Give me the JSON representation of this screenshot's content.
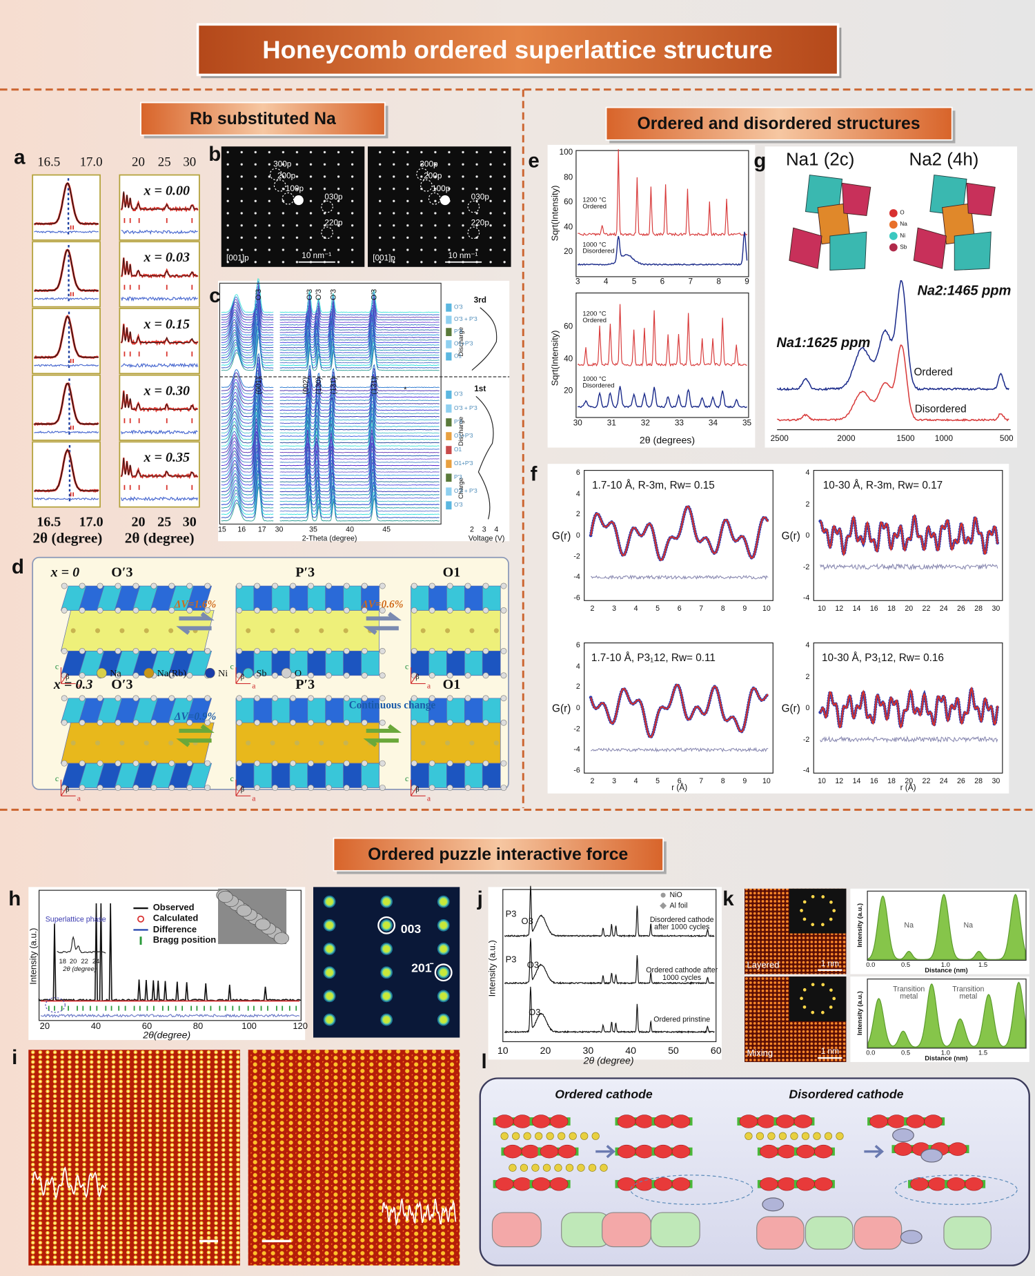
{
  "header": {
    "title": "Honeycomb ordered superlattice structure"
  },
  "sections": [
    {
      "title": "Rb substituted Na"
    },
    {
      "title": "Ordered and disordered structures"
    },
    {
      "title": "Ordered puzzle interactive force"
    }
  ],
  "panels": {
    "a": {
      "letter": "a",
      "top_ticks": [
        "16.5",
        "17.0",
        "20",
        "25",
        "30"
      ],
      "compositions": [
        "x = 0.00",
        "x = 0.03",
        "x = 0.15",
        "x = 0.30",
        "x = 0.35"
      ],
      "bottom_ticks": [
        "16.5",
        "17.0",
        "20",
        "25",
        "30"
      ],
      "xlabel": "2θ (degree)"
    },
    "b": {
      "letter": "b",
      "spots": [
        "300p",
        "200p",
        "100p",
        "030p",
        "220p"
      ],
      "zone": "[001]p",
      "scale": "10 nm⁻¹"
    },
    "c": {
      "letter": "c",
      "peaks_top": [
        "O'3",
        "O'3",
        "O'3",
        "O'3",
        "O'3"
      ],
      "peaks_bottom": [
        "(001)",
        "(002)",
        "(130)",
        "(131̄)",
        "(131)",
        "*"
      ],
      "cycles": [
        "3rd",
        "1st"
      ],
      "branches": [
        "Discharge",
        "Discharge",
        "Charge"
      ],
      "phases_top": [
        "O'3",
        "O'3 + P'3",
        "P'3",
        "O1+P'3",
        "O1"
      ],
      "phases_bottom": [
        "O'3",
        "O'3 + P'3",
        "P'3",
        "O1+P'3",
        "O1",
        "O1+P'3",
        "P'3",
        "O'3 + P'3",
        "O'3"
      ],
      "xticks": [
        "15",
        "16",
        "17",
        "30",
        "35",
        "40",
        "45"
      ],
      "xlabel": "2-Theta (degree)",
      "vticks": [
        "2",
        "3",
        "4"
      ],
      "vlabel": "Voltage (V)"
    },
    "d": {
      "letter": "d",
      "rows": [
        {
          "composition": "x = 0",
          "phases": [
            "O′3",
            "P′3",
            "O1"
          ],
          "changes": [
            "ΔV=1.6%",
            "ΔV=0.6%"
          ]
        },
        {
          "composition": "x = 0.3",
          "phases": [
            "O′3",
            "P′3",
            "O1"
          ],
          "changes": [
            "ΔV=0.9%",
            "Continuous change"
          ]
        }
      ],
      "legend": [
        "Na",
        "Na(Rb)",
        "Ni",
        "Sb",
        "O"
      ],
      "axes": [
        "c",
        "β",
        "a"
      ]
    },
    "e": {
      "letter": "e",
      "ylabel": "Sqrt(Intensity)",
      "top": {
        "yticks": [
          "100",
          "80",
          "60",
          "40",
          "20"
        ],
        "xticks": [
          "3",
          "4",
          "5",
          "6",
          "7",
          "8",
          "9"
        ]
      },
      "bottom": {
        "yticks": [
          "60",
          "40",
          "20"
        ],
        "xticks": [
          "30",
          "31",
          "32",
          "33",
          "34",
          "35"
        ]
      },
      "samples": [
        "1200 °C Ordered",
        "1000 °C Disordered"
      ],
      "xlabel": "2θ (degrees)"
    },
    "f": {
      "letter": "f",
      "ylabel": "G(r)",
      "xlabel": "r (Å)",
      "plots": [
        {
          "title": "1.7-10 Å, R-3m, Rw= 0.15",
          "yticks": [
            "6",
            "4",
            "2",
            "0",
            "-2",
            "-4",
            "-6"
          ],
          "xticks": [
            "2",
            "3",
            "4",
            "5",
            "6",
            "7",
            "8",
            "9",
            "10"
          ]
        },
        {
          "title": "10-30 Å, R-3m, Rw= 0.17",
          "yticks": [
            "4",
            "2",
            "0",
            "-2",
            "-4"
          ],
          "xticks": [
            "10",
            "12",
            "14",
            "16",
            "18",
            "20",
            "22",
            "24",
            "26",
            "28",
            "30"
          ]
        },
        {
          "title": "1.7-10 Å, P3₁12, Rw= 0.11",
          "yticks": [
            "6",
            "4",
            "2",
            "0",
            "-2",
            "-4",
            "-6"
          ],
          "xticks": [
            "2",
            "3",
            "4",
            "5",
            "6",
            "7",
            "8",
            "9",
            "10"
          ]
        },
        {
          "title": "10-30 Å, P3₁12, Rw= 0.16",
          "yticks": [
            "4",
            "2",
            "0",
            "-2",
            "-4"
          ],
          "xticks": [
            "10",
            "12",
            "14",
            "16",
            "18",
            "20",
            "22",
            "24",
            "26",
            "28",
            "30"
          ]
        }
      ]
    },
    "g": {
      "letter": "g",
      "sites": [
        "Na1 (2c)",
        "Na2 (4h)"
      ],
      "legend": [
        "O",
        "Na",
        "Ni",
        "Sb"
      ],
      "peaks": [
        "Na2:1465 ppm",
        "Na1:1625 ppm"
      ],
      "samples": [
        "Ordered",
        "Disordered"
      ],
      "xticks": [
        "2500",
        "2000",
        "1500",
        "1000",
        "500"
      ]
    },
    "h": {
      "letter": "h",
      "legend": [
        "Observed",
        "Calculated",
        "Difference",
        "Bragg position"
      ],
      "inset_label": "Superlattice phase",
      "inset_ticks": [
        "18",
        "20",
        "22",
        "24"
      ],
      "inset_xlabel": "2θ (degree)",
      "ylabel": "Intensity (a.u.)",
      "xticks": [
        "20",
        "40",
        "60",
        "80",
        "100",
        "120"
      ],
      "xlabel": "2θ(degree)",
      "reflections": [
        "003",
        "201̄"
      ]
    },
    "i": {
      "letter": "i"
    },
    "j": {
      "letter": "j",
      "legend": [
        "NiO",
        "Al foil"
      ],
      "samples": [
        "Disordered cathode after 1000 cycles",
        "Ordered cathode after 1000 cycles",
        "Ordered prinstine"
      ],
      "phases": [
        "P3",
        "O3",
        "P3",
        "O3",
        "O3"
      ],
      "ylabel": "Intensity (a.u.)",
      "xticks": [
        "10",
        "20",
        "30",
        "40",
        "50",
        "60"
      ],
      "xlabel": "2θ (degree)"
    },
    "k": {
      "letter": "k",
      "images": [
        "Layered",
        "Mixing"
      ],
      "scale": "1 nm",
      "peaks_top": [
        "Na",
        "Na"
      ],
      "peaks_bottom": [
        "Transition metal",
        "Transition metal"
      ],
      "ylabel": "Intensity (a.u.)",
      "xlabel": "Distance (nm)",
      "xticks": [
        "0.0",
        "0.5",
        "1.0",
        "1.5"
      ]
    },
    "l": {
      "letter": "l",
      "titles": [
        "Ordered cathode",
        "Disordered cathode"
      ]
    }
  }
}
